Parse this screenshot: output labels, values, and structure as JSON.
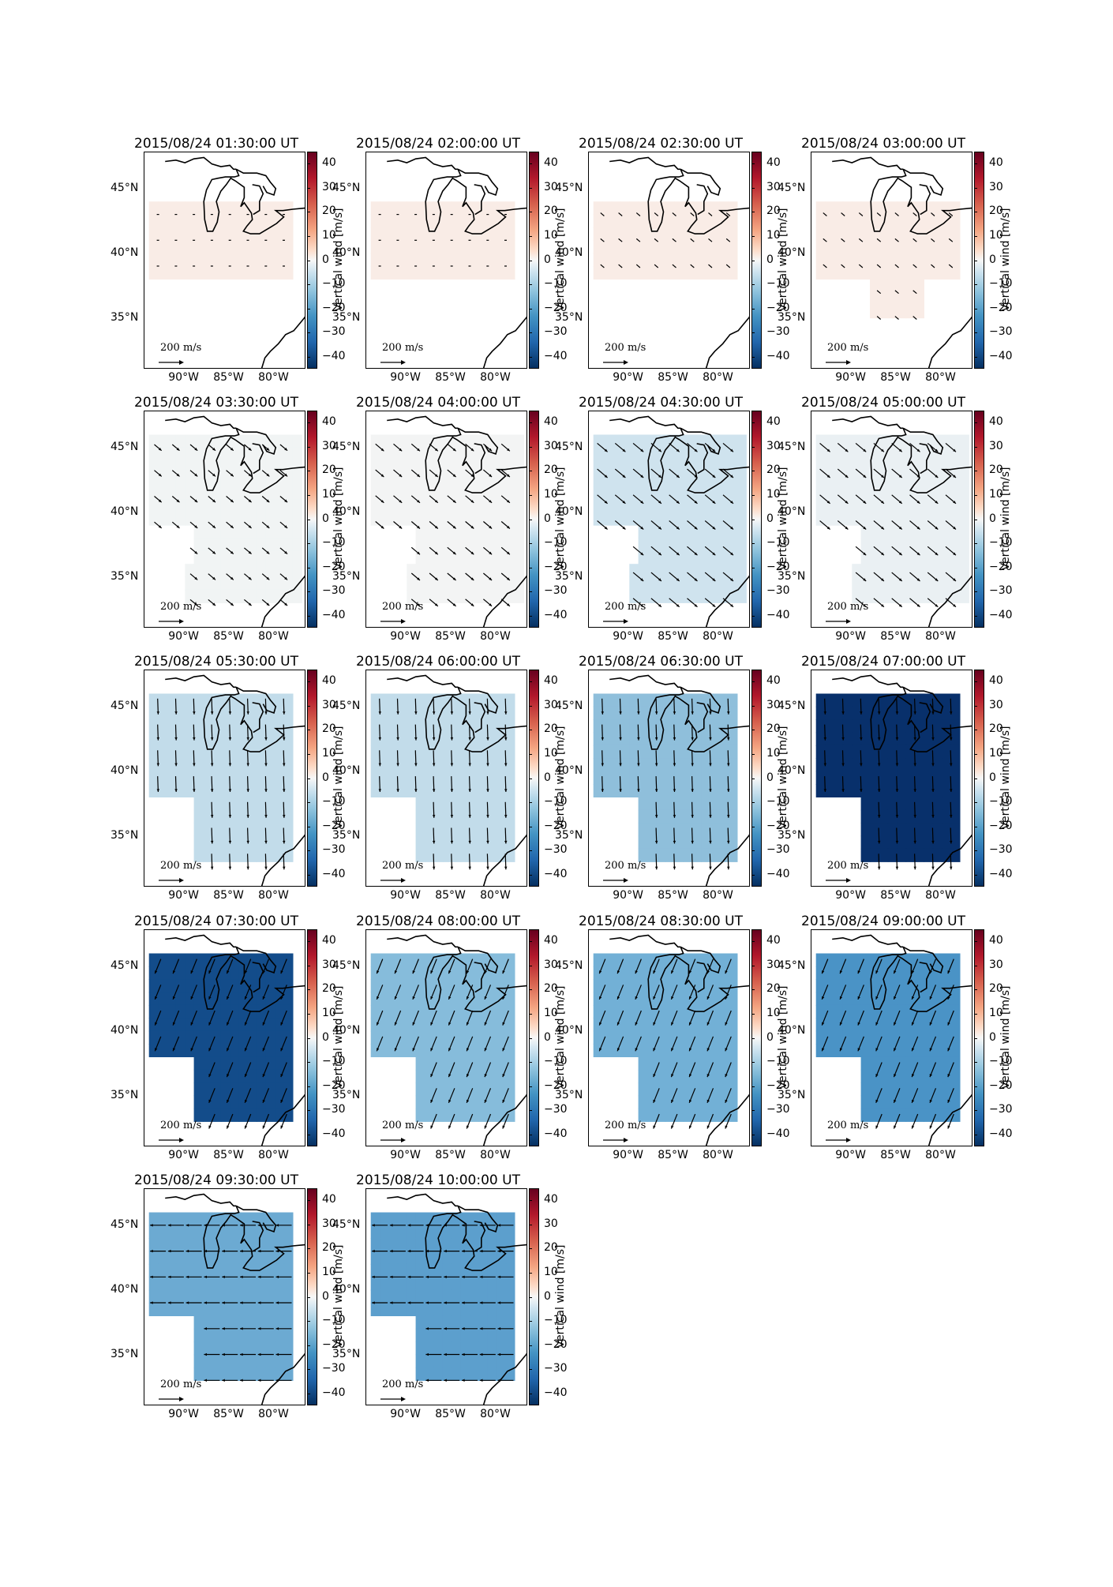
{
  "figure": {
    "colorbar": {
      "label": "Vertical wind [m/s]",
      "ticks": [
        "40",
        "30",
        "20",
        "10",
        "0",
        "−10",
        "−20",
        "−30",
        "−40"
      ],
      "range": [
        -45,
        45
      ],
      "colormap": "RdBu_r"
    },
    "map": {
      "lat_labels": [
        "45°N",
        "40°N",
        "35°N"
      ],
      "lon_labels": [
        "90°W",
        "85°W",
        "80°W"
      ],
      "scale_label": "200 m/s"
    },
    "panels": [
      {
        "title": "2015/08/24 01:30:00 UT",
        "fill_color": "#f9ece6",
        "vertical_wind": 2,
        "pattern": "east",
        "arrow_len": 3
      },
      {
        "title": "2015/08/24 02:00:00 UT",
        "fill_color": "#f9ece6",
        "vertical_wind": 2,
        "pattern": "east",
        "arrow_len": 3
      },
      {
        "title": "2015/08/24 02:30:00 UT",
        "fill_color": "#f9ece6",
        "vertical_wind": 2,
        "pattern": "southeast",
        "arrow_len": 6
      },
      {
        "title": "2015/08/24 03:00:00 UT",
        "fill_color": "#f9ece6",
        "vertical_wind": 2,
        "pattern": "southeast",
        "arrow_len": 6
      },
      {
        "title": "2015/08/24 03:30:00 UT",
        "fill_color": "#f1f4f4",
        "vertical_wind": -1,
        "pattern": "southeast",
        "arrow_len": 12
      },
      {
        "title": "2015/08/24 04:00:00 UT",
        "fill_color": "#f3f4f4",
        "vertical_wind": -1,
        "pattern": "southeast",
        "arrow_len": 14
      },
      {
        "title": "2015/08/24 04:30:00 UT",
        "fill_color": "#cfe3ee",
        "vertical_wind": -8,
        "pattern": "southeast",
        "arrow_len": 17
      },
      {
        "title": "2015/08/24 05:00:00 UT",
        "fill_color": "#eaf0f3",
        "vertical_wind": -3,
        "pattern": "southeast",
        "arrow_len": 17
      },
      {
        "title": "2015/08/24 05:30:00 UT",
        "fill_color": "#c2dcea",
        "vertical_wind": -12,
        "pattern": "south",
        "arrow_len": 20
      },
      {
        "title": "2015/08/24 06:00:00 UT",
        "fill_color": "#c2dcea",
        "vertical_wind": -12,
        "pattern": "south",
        "arrow_len": 20
      },
      {
        "title": "2015/08/24 06:30:00 UT",
        "fill_color": "#8fbfdb",
        "vertical_wind": -18,
        "pattern": "south",
        "arrow_len": 20
      },
      {
        "title": "2015/08/24 07:00:00 UT",
        "fill_color": "#08306b",
        "vertical_wind": -45,
        "pattern": "south",
        "arrow_len": 20
      },
      {
        "title": "2015/08/24 07:30:00 UT",
        "fill_color": "#134c8a",
        "vertical_wind": -38,
        "pattern": "southwest",
        "arrow_len": 20
      },
      {
        "title": "2015/08/24 08:00:00 UT",
        "fill_color": "#86bcdb",
        "vertical_wind": -20,
        "pattern": "southwest",
        "arrow_len": 20
      },
      {
        "title": "2015/08/24 08:30:00 UT",
        "fill_color": "#72b0d6",
        "vertical_wind": -22,
        "pattern": "southwest",
        "arrow_len": 20
      },
      {
        "title": "2015/08/24 09:00:00 UT",
        "fill_color": "#4a93c6",
        "vertical_wind": -28,
        "pattern": "southwest",
        "arrow_len": 20
      },
      {
        "title": "2015/08/24 09:30:00 UT",
        "fill_color": "#6caad2",
        "vertical_wind": -23,
        "pattern": "west",
        "arrow_len": 20
      },
      {
        "title": "2015/08/24 10:00:00 UT",
        "fill_color": "#5c9fcd",
        "vertical_wind": -25,
        "pattern": "west",
        "arrow_len": 20
      }
    ]
  }
}
